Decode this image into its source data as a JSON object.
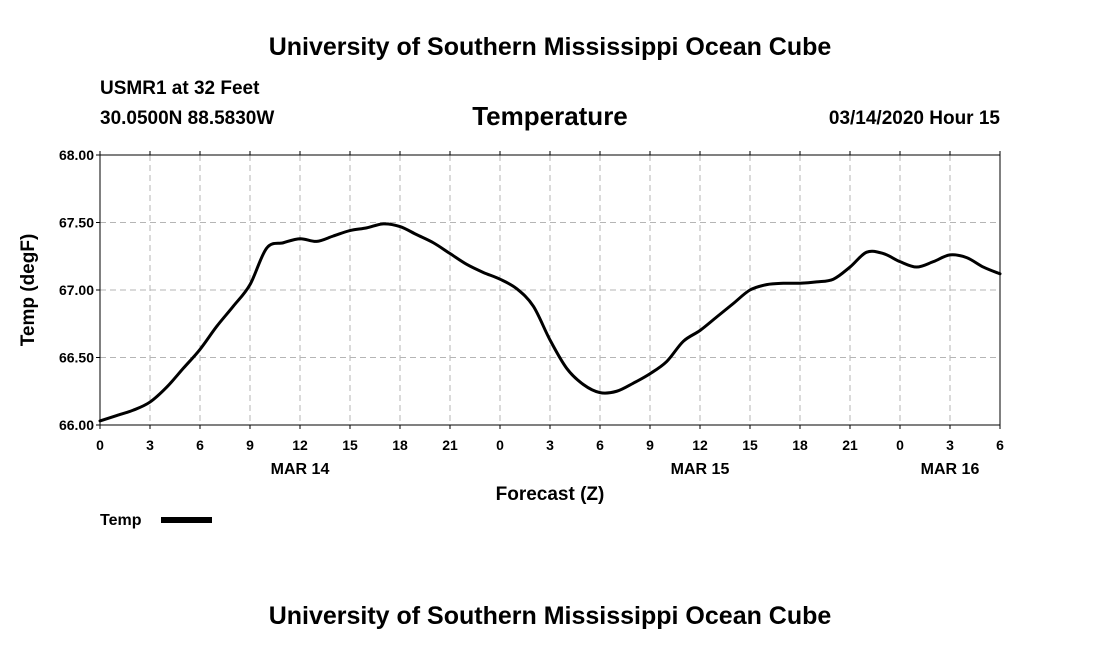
{
  "header": {
    "org_title": "University of Southern Mississippi Ocean Cube",
    "station": "USMR1 at 32 Feet",
    "coords": "30.0500N 88.5830W",
    "date": "03/14/2020 Hour 15"
  },
  "footer": {
    "org_title": "University of Southern Mississippi Ocean Cube"
  },
  "chart_data": {
    "type": "line",
    "title": "Temperature",
    "xlabel": "Forecast (Z)",
    "ylabel": "Temp (degF)",
    "ylim": [
      66.0,
      68.0
    ],
    "y_ticks": [
      "66.00",
      "66.50",
      "67.00",
      "67.50",
      "68.00"
    ],
    "xlim": [
      "2020-03-14 00Z",
      "2020-03-16 06Z"
    ],
    "x_ticks": [
      "0",
      "3",
      "6",
      "9",
      "12",
      "15",
      "18",
      "21",
      "0",
      "3",
      "6",
      "9",
      "12",
      "15",
      "18",
      "21",
      "0",
      "3",
      "6"
    ],
    "date_labels": [
      {
        "label": "MAR 14",
        "at": "2020-03-14 12Z"
      },
      {
        "label": "MAR 15",
        "at": "2020-03-15 12Z"
      },
      {
        "label": "MAR 16",
        "at": "2020-03-16 03Z"
      }
    ],
    "grid": true,
    "legend": "bottom-left",
    "series": [
      {
        "name": "Temp",
        "color": "#000000",
        "x": [
          "2020-03-14 00Z",
          "2020-03-14 01Z",
          "2020-03-14 02Z",
          "2020-03-14 03Z",
          "2020-03-14 04Z",
          "2020-03-14 05Z",
          "2020-03-14 06Z",
          "2020-03-14 07Z",
          "2020-03-14 08Z",
          "2020-03-14 09Z",
          "2020-03-14 10Z",
          "2020-03-14 11Z",
          "2020-03-14 12Z",
          "2020-03-14 13Z",
          "2020-03-14 14Z",
          "2020-03-14 15Z",
          "2020-03-14 16Z",
          "2020-03-14 17Z",
          "2020-03-14 18Z",
          "2020-03-14 19Z",
          "2020-03-14 20Z",
          "2020-03-14 21Z",
          "2020-03-14 22Z",
          "2020-03-14 23Z",
          "2020-03-15 00Z",
          "2020-03-15 01Z",
          "2020-03-15 02Z",
          "2020-03-15 03Z",
          "2020-03-15 04Z",
          "2020-03-15 05Z",
          "2020-03-15 06Z",
          "2020-03-15 07Z",
          "2020-03-15 08Z",
          "2020-03-15 09Z",
          "2020-03-15 10Z",
          "2020-03-15 11Z",
          "2020-03-15 12Z",
          "2020-03-15 13Z",
          "2020-03-15 14Z",
          "2020-03-15 15Z",
          "2020-03-15 16Z",
          "2020-03-15 17Z",
          "2020-03-15 18Z",
          "2020-03-15 19Z",
          "2020-03-15 20Z",
          "2020-03-15 21Z",
          "2020-03-15 22Z",
          "2020-03-15 23Z",
          "2020-03-16 00Z",
          "2020-03-16 01Z",
          "2020-03-16 02Z",
          "2020-03-16 03Z",
          "2020-03-16 04Z",
          "2020-03-16 05Z",
          "2020-03-16 06Z"
        ],
        "values": [
          66.03,
          66.07,
          66.11,
          66.17,
          66.28,
          66.42,
          66.56,
          66.73,
          66.88,
          67.04,
          67.31,
          67.35,
          67.38,
          67.36,
          67.4,
          67.44,
          67.46,
          67.49,
          67.47,
          67.41,
          67.35,
          67.27,
          67.19,
          67.13,
          67.08,
          67.01,
          66.88,
          66.63,
          66.42,
          66.3,
          66.24,
          66.25,
          66.31,
          66.38,
          66.47,
          66.62,
          66.7,
          66.8,
          66.9,
          67.0,
          67.04,
          67.05,
          67.05,
          67.06,
          67.08,
          67.17,
          67.28,
          67.27,
          67.21,
          67.17,
          67.21,
          67.26,
          67.24,
          67.17,
          67.12
        ]
      }
    ]
  }
}
